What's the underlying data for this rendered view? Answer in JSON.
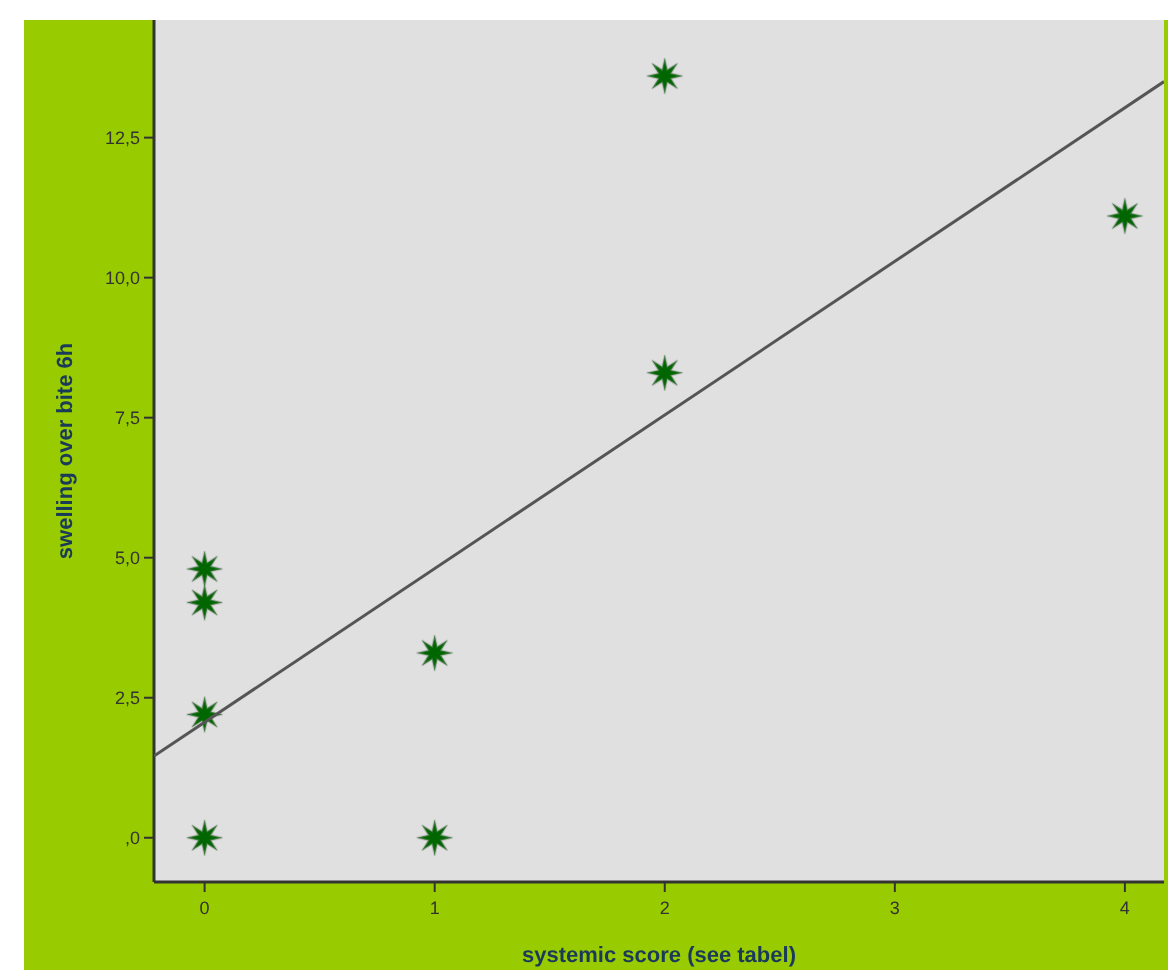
{
  "chart_data": {
    "type": "scatter",
    "xlabel": "systemic score (see tabel)",
    "ylabel": "swelling over bite 6h",
    "xlim": [
      -0.22,
      4.17
    ],
    "ylim": [
      -0.79,
      14.6
    ],
    "xticks": [
      0,
      1,
      2,
      3,
      4
    ],
    "yticks": [
      {
        "value": 0,
        "label": ",0"
      },
      {
        "value": 2.5,
        "label": "2,5"
      },
      {
        "value": 5,
        "label": "5,0"
      },
      {
        "value": 7.5,
        "label": "7,5"
      },
      {
        "value": 10,
        "label": "10,0"
      },
      {
        "value": 12.5,
        "label": "12,5"
      }
    ],
    "grid": false,
    "marker": "star",
    "series": [
      {
        "type": "scatter",
        "color": "#006600",
        "x": [
          0,
          0,
          0,
          0,
          1,
          1,
          2,
          2,
          4
        ],
        "values": [
          0,
          2.2,
          4.2,
          4.8,
          0,
          3.3,
          8.3,
          13.6,
          11.1
        ]
      },
      {
        "type": "line",
        "color": "#555555",
        "marker": "none",
        "x": [
          -0.22,
          4.17
        ],
        "values": [
          1.46,
          13.5
        ]
      }
    ]
  }
}
